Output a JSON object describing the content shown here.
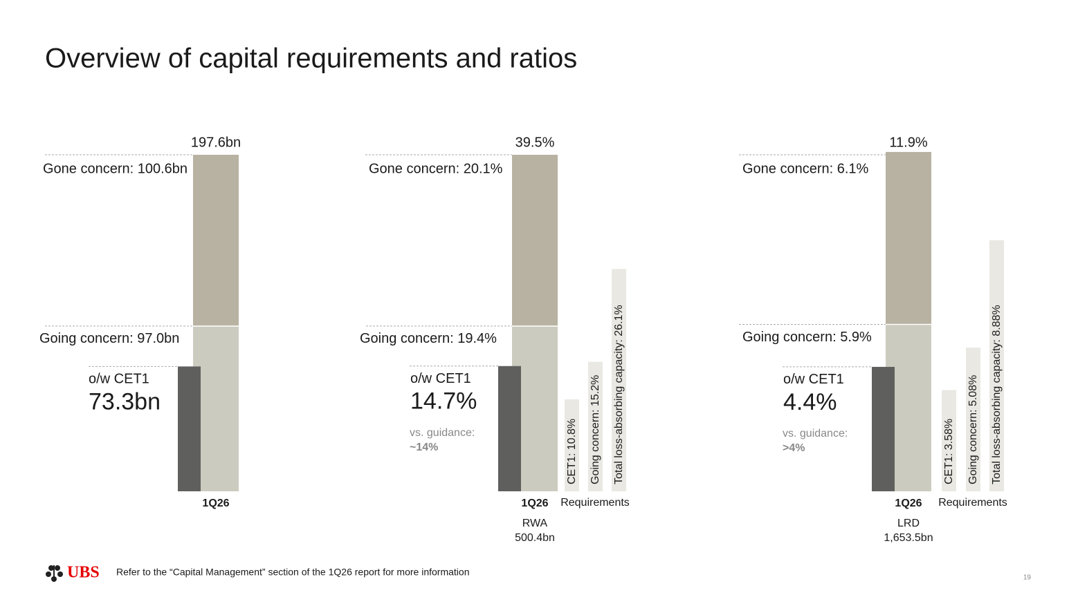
{
  "title": "Overview of capital requirements and ratios",
  "chart_data": [
    {
      "type": "stacked-bar",
      "category": "1Q26",
      "total": 197.6,
      "total_label": "197.6bn",
      "segments": [
        {
          "label": "Going concern: 97.0bn",
          "value": 97.0,
          "color": "#cccbbf"
        },
        {
          "label": "Gone concern: 100.6bn",
          "value": 100.6,
          "color": "#b8b2a2"
        }
      ],
      "cet1": {
        "label": "o/w CET1",
        "value": 73.3,
        "value_label": "73.3bn",
        "color": "#5f605e"
      }
    },
    {
      "type": "stacked-bar",
      "category": "1Q26",
      "total": 39.5,
      "total_label": "39.5%",
      "segments": [
        {
          "label": "Going concern: 19.4%",
          "value": 19.4,
          "color": "#cccbbf"
        },
        {
          "label": "Gone concern: 20.1%",
          "value": 20.1,
          "color": "#b8b2a2"
        }
      ],
      "cet1": {
        "label": "o/w CET1",
        "value": 14.7,
        "value_label": "14.7%",
        "color": "#5f605e"
      },
      "guidance": {
        "label": "vs. guidance:",
        "value": "~14%"
      },
      "base": [
        "RWA",
        "500.4bn"
      ],
      "requirements_label": "Requirements",
      "requirements": [
        {
          "label": "CET1: 10.8%",
          "value": 10.8
        },
        {
          "label": "Going concern: 15.2%",
          "value": 15.2
        },
        {
          "label": "Total loss-absorbing capacity: 26.1%",
          "value": 26.1
        }
      ],
      "requirements_color": "#e9e8e3"
    },
    {
      "type": "stacked-bar",
      "category": "1Q26",
      "total": 11.9,
      "total_label": "11.9%",
      "segments": [
        {
          "label": "Going concern: 5.9%",
          "value": 5.9,
          "color": "#cccbbf"
        },
        {
          "label": "Gone concern: 6.1%",
          "value": 6.1,
          "color": "#b8b2a2"
        }
      ],
      "cet1": {
        "label": "o/w CET1",
        "value": 4.4,
        "value_label": "4.4%",
        "color": "#5f605e"
      },
      "guidance": {
        "label": "vs. guidance:",
        "value": ">4%"
      },
      "base": [
        "LRD",
        "1,653.5bn"
      ],
      "requirements_label": "Requirements",
      "requirements": [
        {
          "label": "CET1: 3.58%",
          "value": 3.58
        },
        {
          "label": "Going concern: 5.08%",
          "value": 5.08
        },
        {
          "label": "Total loss-absorbing capacity: 8.88%",
          "value": 8.88
        }
      ],
      "requirements_color": "#e9e8e3"
    }
  ],
  "footer": {
    "logo": "UBS",
    "note": "Refer to the “Capital Management” section of the 1Q26 report for more information",
    "page": "19"
  }
}
